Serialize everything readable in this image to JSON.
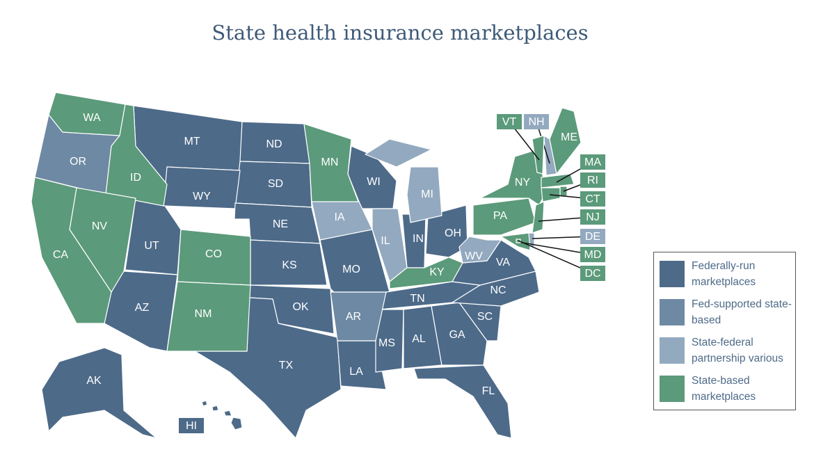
{
  "title": "State health insurance marketplaces",
  "legend": [
    {
      "name": "Federally-run marketplaces",
      "color": "#4d6a89",
      "states": [
        "MT",
        "ND",
        "SD",
        "WY",
        "NE",
        "KS",
        "UT",
        "AZ",
        "OK",
        "TX",
        "MO",
        "WI",
        "IN",
        "OH",
        "TN",
        "LA",
        "MS",
        "AL",
        "GA",
        "SC",
        "NC",
        "VA",
        "FL",
        "AK",
        "HI"
      ]
    },
    {
      "name": "Fed-supported state-based",
      "color": "#6e89a3",
      "states": [
        "OR",
        "AR"
      ]
    },
    {
      "name": "State-federal partnership various",
      "color": "#93a9bf",
      "states": [
        "IA",
        "IL",
        "MI",
        "WV",
        "NH",
        "DE"
      ]
    },
    {
      "name": "State-based marketplaces",
      "color": "#5b9a7a",
      "states": [
        "WA",
        "ID",
        "NV",
        "CA",
        "CO",
        "NM",
        "MN",
        "KY",
        "NY",
        "PA",
        "VT",
        "ME",
        "MA",
        "RI",
        "CT",
        "NJ",
        "MD",
        "DC"
      ]
    }
  ]
}
